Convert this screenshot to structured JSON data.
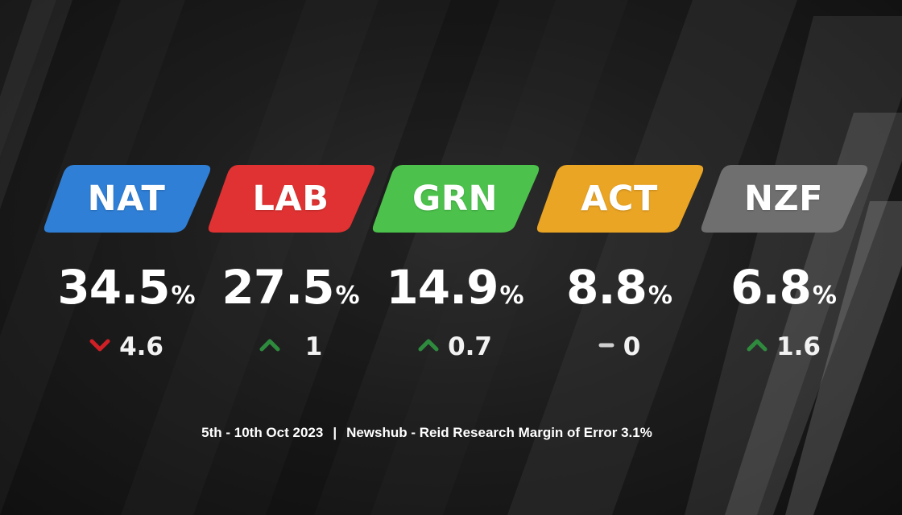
{
  "chart_data": {
    "type": "bar",
    "categories": [
      "NAT",
      "LAB",
      "GRN",
      "ACT",
      "NZF"
    ],
    "values": [
      34.5,
      27.5,
      14.9,
      8.8,
      6.8
    ],
    "unit": "%",
    "changes": [
      {
        "direction": "down",
        "value": "4.6"
      },
      {
        "direction": "up",
        "value": "1"
      },
      {
        "direction": "up",
        "value": "0.7"
      },
      {
        "direction": "none",
        "value": "0"
      },
      {
        "direction": "up",
        "value": "1.6"
      }
    ],
    "colors": [
      "#2f7fd6",
      "#e03232",
      "#4cc24c",
      "#eba524",
      "#6f6f6f"
    ],
    "arrow_colors": {
      "up": "#2e8b3e",
      "down": "#d11f26",
      "none": "#cfcfcf"
    }
  },
  "parties": [
    {
      "name": "NAT",
      "pct": "34.5",
      "pct_sign": "%",
      "change": "4.6"
    },
    {
      "name": "LAB",
      "pct": "27.5",
      "pct_sign": "%",
      "change": "1"
    },
    {
      "name": "GRN",
      "pct": "14.9",
      "pct_sign": "%",
      "change": "0.7"
    },
    {
      "name": "ACT",
      "pct": "8.8",
      "pct_sign": "%",
      "change": "0"
    },
    {
      "name": "NZF",
      "pct": "6.8",
      "pct_sign": "%",
      "change": "1.6"
    }
  ],
  "footer": {
    "dates": "5th - 10th Oct 2023",
    "separator": "|",
    "source": "Newshub - Reid Research Margin of Error 3.1%"
  }
}
